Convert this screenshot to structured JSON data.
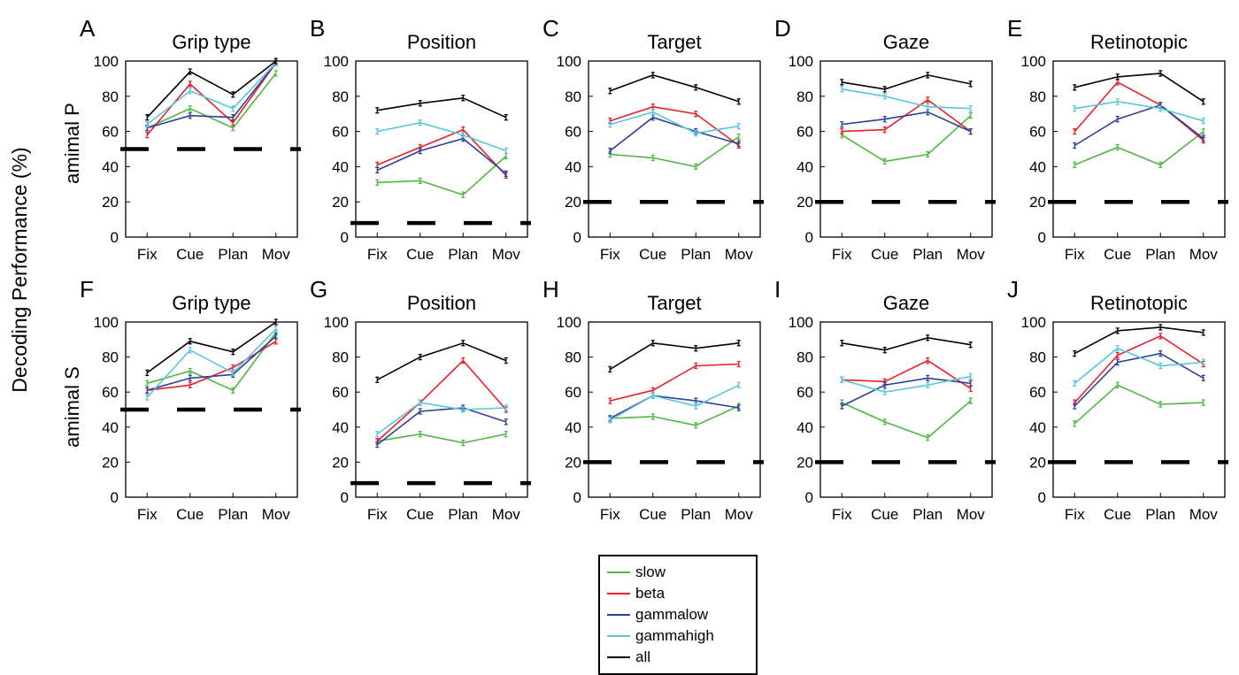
{
  "figure": {
    "ylabel": "Decoding Performance (%)",
    "row_labels": [
      "amimal P",
      "amimal S"
    ]
  },
  "legend": [
    {
      "name": "slow",
      "color": "#4fb743"
    },
    {
      "name": "beta",
      "color": "#e8202a"
    },
    {
      "name": "gammalow",
      "color": "#2e3f98"
    },
    {
      "name": "gammahigh",
      "color": "#59c6dd"
    },
    {
      "name": "all",
      "color": "#000000"
    }
  ],
  "chart_data": [
    {
      "letter": "A",
      "title": "Grip type",
      "type": "line",
      "categories": [
        "Fix",
        "Cue",
        "Plan",
        "Mov"
      ],
      "ylim": [
        0,
        100
      ],
      "yticks": [
        0,
        20,
        40,
        60,
        80,
        100
      ],
      "chance": 50,
      "series": [
        {
          "name": "slow",
          "values": [
            62,
            73,
            62,
            93
          ]
        },
        {
          "name": "beta",
          "values": [
            58,
            87,
            65,
            99
          ]
        },
        {
          "name": "gammalow",
          "values": [
            62,
            69,
            68,
            99
          ]
        },
        {
          "name": "gammahigh",
          "values": [
            64,
            83,
            73,
            99
          ]
        },
        {
          "name": "all",
          "values": [
            68,
            94,
            81,
            100
          ]
        }
      ]
    },
    {
      "letter": "B",
      "title": "Position",
      "type": "line",
      "categories": [
        "Fix",
        "Cue",
        "Plan",
        "Mov"
      ],
      "ylim": [
        0,
        100
      ],
      "yticks": [
        0,
        20,
        40,
        60,
        80,
        100
      ],
      "chance": 8,
      "series": [
        {
          "name": "slow",
          "values": [
            31,
            32,
            24,
            46
          ]
        },
        {
          "name": "beta",
          "values": [
            41,
            51,
            61,
            35
          ]
        },
        {
          "name": "gammalow",
          "values": [
            38,
            49,
            56,
            36
          ]
        },
        {
          "name": "gammahigh",
          "values": [
            60,
            65,
            58,
            49
          ]
        },
        {
          "name": "all",
          "values": [
            72,
            76,
            79,
            68
          ]
        }
      ]
    },
    {
      "letter": "C",
      "title": "Target",
      "type": "line",
      "categories": [
        "Fix",
        "Cue",
        "Plan",
        "Mov"
      ],
      "ylim": [
        0,
        100
      ],
      "yticks": [
        0,
        20,
        40,
        60,
        80,
        100
      ],
      "chance": 20,
      "series": [
        {
          "name": "slow",
          "values": [
            47,
            45,
            40,
            57
          ]
        },
        {
          "name": "beta",
          "values": [
            66,
            74,
            70,
            52
          ]
        },
        {
          "name": "gammalow",
          "values": [
            49,
            68,
            60,
            53
          ]
        },
        {
          "name": "gammahigh",
          "values": [
            64,
            71,
            59,
            63
          ]
        },
        {
          "name": "all",
          "values": [
            83,
            92,
            85,
            77
          ]
        }
      ]
    },
    {
      "letter": "D",
      "title": "Gaze",
      "type": "line",
      "categories": [
        "Fix",
        "Cue",
        "Plan",
        "Mov"
      ],
      "ylim": [
        0,
        100
      ],
      "yticks": [
        0,
        20,
        40,
        60,
        80,
        100
      ],
      "chance": 20,
      "series": [
        {
          "name": "slow",
          "values": [
            58,
            43,
            47,
            69
          ]
        },
        {
          "name": "beta",
          "values": [
            60,
            61,
            78,
            60
          ]
        },
        {
          "name": "gammalow",
          "values": [
            64,
            67,
            71,
            60
          ]
        },
        {
          "name": "gammahigh",
          "values": [
            84,
            80,
            74,
            73
          ]
        },
        {
          "name": "all",
          "values": [
            88,
            84,
            92,
            87
          ]
        }
      ]
    },
    {
      "letter": "E",
      "title": "Retinotopic",
      "type": "line",
      "categories": [
        "Fix",
        "Cue",
        "Plan",
        "Mov"
      ],
      "ylim": [
        0,
        100
      ],
      "yticks": [
        0,
        20,
        40,
        60,
        80,
        100
      ],
      "chance": 20,
      "series": [
        {
          "name": "slow",
          "values": [
            41,
            51,
            41,
            60
          ]
        },
        {
          "name": "beta",
          "values": [
            60,
            88,
            75,
            55
          ]
        },
        {
          "name": "gammalow",
          "values": [
            52,
            67,
            75,
            56
          ]
        },
        {
          "name": "gammahigh",
          "values": [
            73,
            77,
            73,
            66
          ]
        },
        {
          "name": "all",
          "values": [
            85,
            91,
            93,
            77
          ]
        }
      ]
    },
    {
      "letter": "F",
      "title": "Grip type",
      "type": "line",
      "categories": [
        "Fix",
        "Cue",
        "Plan",
        "Mov"
      ],
      "ylim": [
        0,
        100
      ],
      "yticks": [
        0,
        20,
        40,
        60,
        80,
        100
      ],
      "chance": 50,
      "series": [
        {
          "name": "slow",
          "values": [
            65,
            72,
            61,
            94
          ]
        },
        {
          "name": "beta",
          "values": [
            61,
            64,
            74,
            89
          ]
        },
        {
          "name": "gammalow",
          "values": [
            61,
            68,
            70,
            92
          ]
        },
        {
          "name": "gammahigh",
          "values": [
            57,
            84,
            71,
            96
          ]
        },
        {
          "name": "all",
          "values": [
            71,
            89,
            83,
            100
          ]
        }
      ]
    },
    {
      "letter": "G",
      "title": "Position",
      "type": "line",
      "categories": [
        "Fix",
        "Cue",
        "Plan",
        "Mov"
      ],
      "ylim": [
        0,
        100
      ],
      "yticks": [
        0,
        20,
        40,
        60,
        80,
        100
      ],
      "chance": 8,
      "series": [
        {
          "name": "slow",
          "values": [
            32,
            36,
            31,
            36
          ]
        },
        {
          "name": "beta",
          "values": [
            32,
            54,
            78,
            50
          ]
        },
        {
          "name": "gammalow",
          "values": [
            30,
            49,
            51,
            43
          ]
        },
        {
          "name": "gammahigh",
          "values": [
            36,
            54,
            50,
            51
          ]
        },
        {
          "name": "all",
          "values": [
            67,
            80,
            88,
            78
          ]
        }
      ]
    },
    {
      "letter": "H",
      "title": "Target",
      "type": "line",
      "categories": [
        "Fix",
        "Cue",
        "Plan",
        "Mov"
      ],
      "ylim": [
        0,
        100
      ],
      "yticks": [
        0,
        20,
        40,
        60,
        80,
        100
      ],
      "chance": 20,
      "series": [
        {
          "name": "slow",
          "values": [
            45,
            46,
            41,
            52
          ]
        },
        {
          "name": "beta",
          "values": [
            55,
            61,
            75,
            76
          ]
        },
        {
          "name": "gammalow",
          "values": [
            45,
            58,
            55,
            51
          ]
        },
        {
          "name": "gammahigh",
          "values": [
            44,
            58,
            52,
            64
          ]
        },
        {
          "name": "all",
          "values": [
            73,
            88,
            85,
            88
          ]
        }
      ]
    },
    {
      "letter": "I",
      "title": "Gaze",
      "type": "line",
      "categories": [
        "Fix",
        "Cue",
        "Plan",
        "Mov"
      ],
      "ylim": [
        0,
        100
      ],
      "yticks": [
        0,
        20,
        40,
        60,
        80,
        100
      ],
      "chance": 20,
      "series": [
        {
          "name": "slow",
          "values": [
            54,
            43,
            34,
            55
          ]
        },
        {
          "name": "beta",
          "values": [
            67,
            66,
            78,
            62
          ]
        },
        {
          "name": "gammalow",
          "values": [
            52,
            64,
            68,
            65
          ]
        },
        {
          "name": "gammahigh",
          "values": [
            67,
            60,
            64,
            69
          ]
        },
        {
          "name": "all",
          "values": [
            88,
            84,
            91,
            87
          ]
        }
      ]
    },
    {
      "letter": "J",
      "title": "Retinotopic",
      "type": "line",
      "categories": [
        "Fix",
        "Cue",
        "Plan",
        "Mov"
      ],
      "ylim": [
        0,
        100
      ],
      "yticks": [
        0,
        20,
        40,
        60,
        80,
        100
      ],
      "chance": 20,
      "series": [
        {
          "name": "slow",
          "values": [
            42,
            64,
            53,
            54
          ]
        },
        {
          "name": "beta",
          "values": [
            54,
            81,
            92,
            76
          ]
        },
        {
          "name": "gammalow",
          "values": [
            52,
            77,
            82,
            68
          ]
        },
        {
          "name": "gammahigh",
          "values": [
            65,
            85,
            75,
            77
          ]
        },
        {
          "name": "all",
          "values": [
            82,
            95,
            97,
            94
          ]
        }
      ]
    }
  ]
}
